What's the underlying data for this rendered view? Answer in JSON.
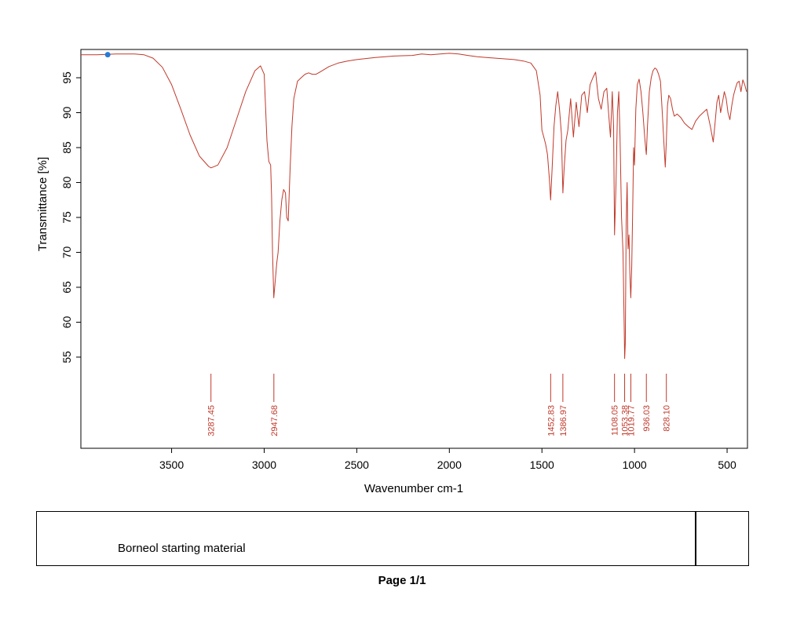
{
  "chart_data": {
    "type": "line",
    "xlabel": "Wavenumber cm-1",
    "ylabel": "Transmittance [%]",
    "x_reversed": true,
    "xlim": [
      3990,
      390
    ],
    "ylim": [
      41.5,
      98.6
    ],
    "x_ticks": [
      3500,
      3000,
      2500,
      2000,
      1500,
      1000,
      500
    ],
    "y_ticks": [
      55,
      60,
      65,
      70,
      75,
      80,
      85,
      90,
      95
    ],
    "grid": false,
    "series": [
      {
        "color": "#c0392b",
        "x": [
          3990,
          3900,
          3800,
          3700,
          3650,
          3600,
          3550,
          3500,
          3450,
          3400,
          3350,
          3300,
          3287,
          3250,
          3200,
          3150,
          3100,
          3050,
          3020,
          3000,
          2985,
          2975,
          2965,
          2960,
          2955,
          2948,
          2940,
          2932,
          2925,
          2915,
          2905,
          2895,
          2885,
          2878,
          2870,
          2860,
          2850,
          2840,
          2820,
          2800,
          2780,
          2760,
          2740,
          2720,
          2700,
          2650,
          2600,
          2550,
          2500,
          2400,
          2300,
          2200,
          2150,
          2100,
          2050,
          2000,
          1950,
          1900,
          1850,
          1800,
          1750,
          1700,
          1650,
          1600,
          1560,
          1530,
          1510,
          1500,
          1490,
          1480,
          1470,
          1460,
          1453,
          1445,
          1435,
          1425,
          1415,
          1405,
          1395,
          1387,
          1380,
          1370,
          1360,
          1345,
          1330,
          1315,
          1300,
          1285,
          1270,
          1255,
          1240,
          1225,
          1210,
          1195,
          1180,
          1165,
          1150,
          1140,
          1130,
          1120,
          1113,
          1108,
          1100,
          1092,
          1085,
          1078,
          1070,
          1062,
          1056,
          1053,
          1050,
          1045,
          1040,
          1035,
          1030,
          1025,
          1020,
          1015,
          1010,
          1005,
          1000,
          993,
          985,
          975,
          965,
          955,
          945,
          940,
          936,
          930,
          920,
          910,
          900,
          890,
          880,
          870,
          860,
          850,
          840,
          834,
          828,
          822,
          815,
          805,
          795,
          785,
          770,
          750,
          730,
          710,
          690,
          670,
          650,
          630,
          610,
          590,
          575,
          565,
          555,
          545,
          535,
          525,
          515,
          505,
          495,
          485,
          475,
          465,
          455,
          445,
          435,
          425,
          415,
          405,
          395
        ],
        "y": [
          98.3,
          98.3,
          98.4,
          98.4,
          98.3,
          97.8,
          96.5,
          94.0,
          90.5,
          86.8,
          83.8,
          82.3,
          82.1,
          82.5,
          85.0,
          89.0,
          93.0,
          96.0,
          96.7,
          95.5,
          86.0,
          83.0,
          82.5,
          78.0,
          70.0,
          63.5,
          66.0,
          68.5,
          70.0,
          74.5,
          77.5,
          79.0,
          78.5,
          75.0,
          74.5,
          82.0,
          88.0,
          92.0,
          94.5,
          95.0,
          95.5,
          95.7,
          95.5,
          95.5,
          95.8,
          96.6,
          97.1,
          97.4,
          97.6,
          97.9,
          98.1,
          98.2,
          98.4,
          98.3,
          98.4,
          98.5,
          98.4,
          98.2,
          98.0,
          97.9,
          97.8,
          97.7,
          97.6,
          97.4,
          97.1,
          96.0,
          92.5,
          87.5,
          86.5,
          85.5,
          84.0,
          80.5,
          77.5,
          82.0,
          88.0,
          91.0,
          93.0,
          90.5,
          87.0,
          78.5,
          82.0,
          86.0,
          87.5,
          92.0,
          86.5,
          91.5,
          88.0,
          92.5,
          93.0,
          90.0,
          94.0,
          95.0,
          95.8,
          92.0,
          90.5,
          93.0,
          93.5,
          90.0,
          86.5,
          93.0,
          88.0,
          72.5,
          80.0,
          90.0,
          93.0,
          86.5,
          75.0,
          70.0,
          60.0,
          54.8,
          57.0,
          74.0,
          80.0,
          70.5,
          72.5,
          67.0,
          63.5,
          68.0,
          76.0,
          85.0,
          82.5,
          90.5,
          94.0,
          94.8,
          93.0,
          90.0,
          86.5,
          85.0,
          84.0,
          88.0,
          93.0,
          95.0,
          96.0,
          96.4,
          96.2,
          95.5,
          94.5,
          90.0,
          85.0,
          82.2,
          86.0,
          91.0,
          92.5,
          92.0,
          90.5,
          89.5,
          89.8,
          89.3,
          88.5,
          88.0,
          87.6,
          88.8,
          89.5,
          90.0,
          90.5,
          88.0,
          85.8,
          88.5,
          91.5,
          92.5,
          90.0,
          91.5,
          93.0,
          92.0,
          90.0,
          89.0,
          91.0,
          92.5,
          93.5,
          94.3,
          94.5,
          93.0,
          94.7,
          94.0,
          93.0
        ]
      }
    ],
    "peaks": [
      "3287.45",
      "2947.68",
      "1452.83",
      "1386.97",
      "1108.05",
      "1053.38",
      "1019.77",
      "936.03",
      "828.10"
    ],
    "marker": {
      "x": 3845,
      "y": 98.3,
      "color": "#2979d9"
    }
  },
  "footer": {
    "sample_name": "Borneol starting material",
    "page_label": "Page 1/1"
  }
}
